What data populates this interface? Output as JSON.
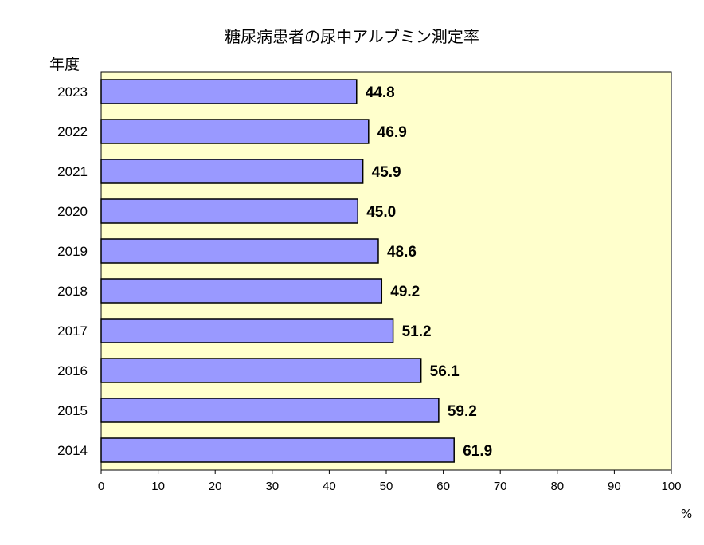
{
  "chart_data": {
    "type": "bar",
    "orientation": "horizontal",
    "title": "糖尿病患者の尿中アルブミン測定率",
    "ylabel": "年度",
    "unit": "%",
    "categories": [
      "2023",
      "2022",
      "2021",
      "2020",
      "2019",
      "2018",
      "2017",
      "2016",
      "2015",
      "2014"
    ],
    "values": [
      44.8,
      46.9,
      45.9,
      45.0,
      48.6,
      49.2,
      51.2,
      56.1,
      59.2,
      61.9
    ],
    "value_labels": [
      "44.8",
      "46.9",
      "45.9",
      "45.0",
      "48.6",
      "49.2",
      "51.2",
      "56.1",
      "59.2",
      "61.9"
    ],
    "xlim": [
      0,
      100
    ],
    "x_ticks": [
      0,
      10,
      20,
      30,
      40,
      50,
      60,
      70,
      80,
      90,
      100
    ],
    "grid": false,
    "legend": "none",
    "colors": {
      "bar_fill": "#9999ff",
      "bar_stroke": "#000000",
      "plot_background": "#ffffcc"
    }
  }
}
